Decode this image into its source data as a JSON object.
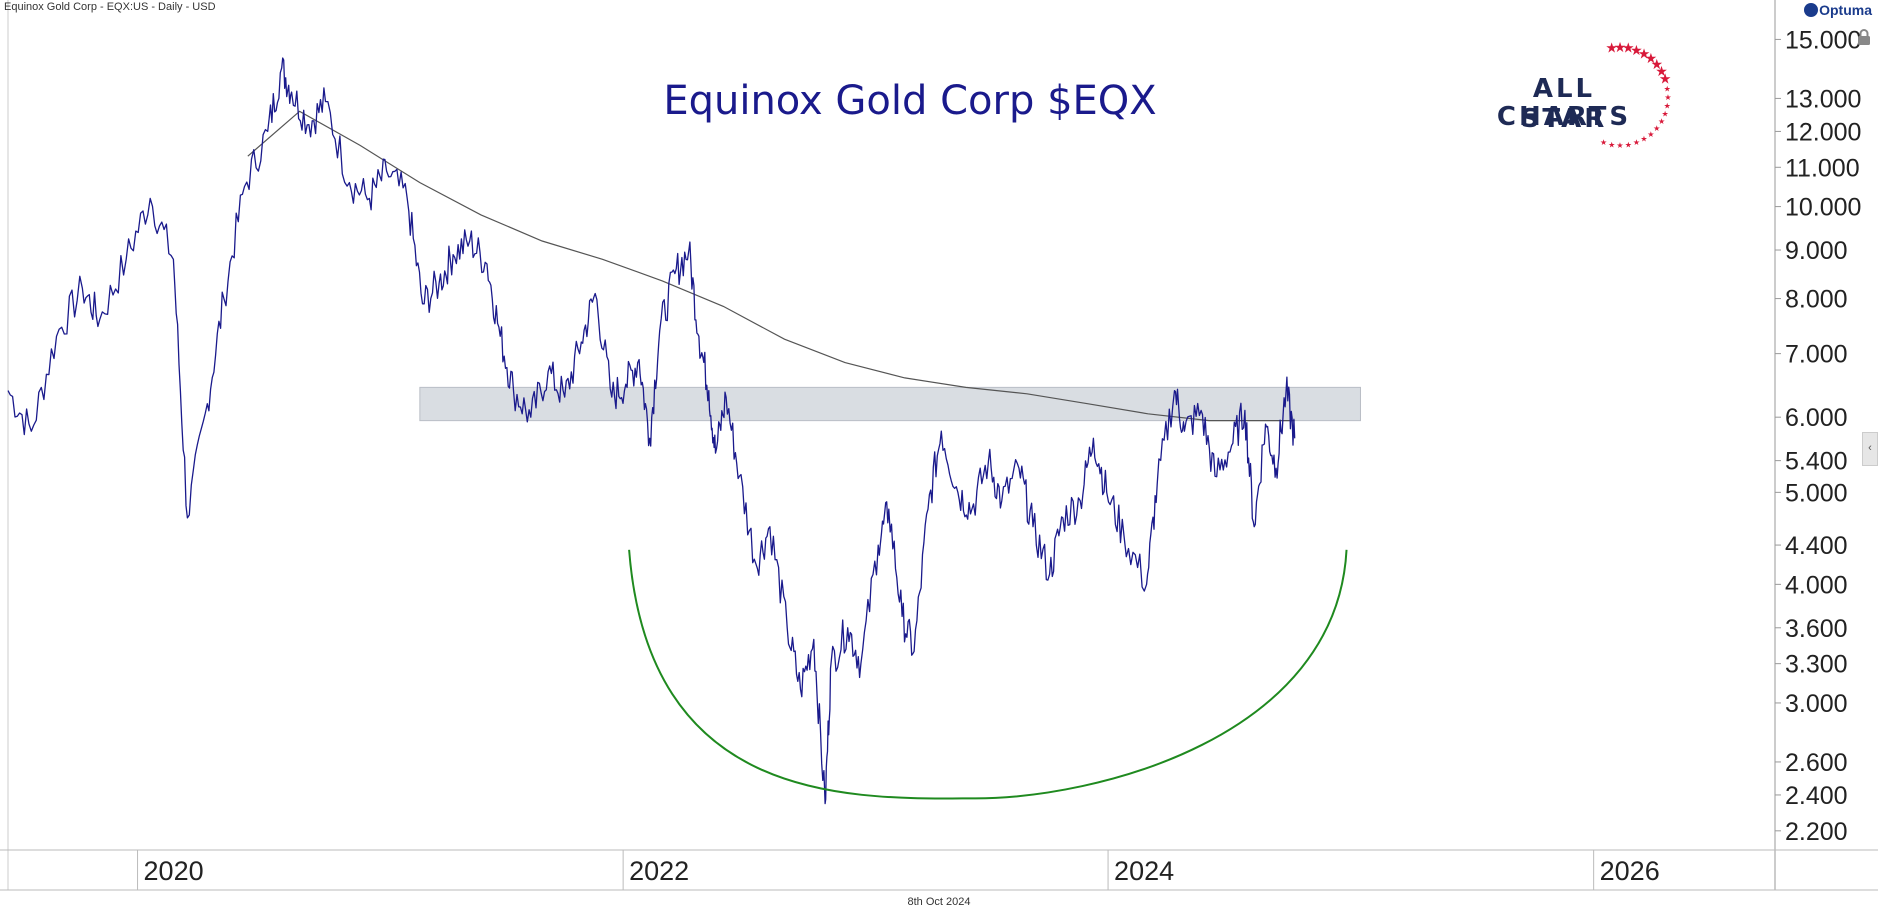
{
  "header": {
    "text": "Equinox Gold Corp - EQX:US - Daily - USD"
  },
  "title": "Equinox Gold Corp $EQX",
  "footer_date": "8th Oct 2024",
  "brand": {
    "name": "Optuma",
    "icon": "optuma-logo-icon"
  },
  "logo": {
    "line1": "ALL STAR",
    "line2": "CHARTS",
    "star_color": "#d8193a",
    "text_color": "#1e2a55"
  },
  "colors": {
    "price": "#1a1a8c",
    "moving_average": "#555555",
    "zone": "#d9dde2",
    "arc": "#1f8a1f",
    "title": "#1a1a8c"
  },
  "chart_data": {
    "type": "line",
    "title": "Equinox Gold Corp $EQX",
    "scale": "log",
    "ylim": [
      2.1,
      15.8
    ],
    "xlim": [
      "2019-06-20",
      "2026-10-01"
    ],
    "x_ticks": [
      {
        "label": "2020",
        "date": "2020-01-01"
      },
      {
        "label": "2022",
        "date": "2022-01-01"
      },
      {
        "label": "2024",
        "date": "2024-01-01"
      },
      {
        "label": "2026",
        "date": "2026-01-01"
      }
    ],
    "y_ticks": [
      {
        "label": "15.000",
        "value": 15.0
      },
      {
        "label": "13.000",
        "value": 13.0
      },
      {
        "label": "12.000",
        "value": 12.0
      },
      {
        "label": "11.000",
        "value": 11.0
      },
      {
        "label": "10.000",
        "value": 10.0
      },
      {
        "label": "9.000",
        "value": 9.0
      },
      {
        "label": "8.000",
        "value": 8.0
      },
      {
        "label": "7.000",
        "value": 7.0
      },
      {
        "label": "6.000",
        "value": 6.0
      },
      {
        "label": "5.400",
        "value": 5.4
      },
      {
        "label": "5.000",
        "value": 5.0
      },
      {
        "label": "4.400",
        "value": 4.4
      },
      {
        "label": "4.000",
        "value": 4.0
      },
      {
        "label": "3.600",
        "value": 3.6
      },
      {
        "label": "3.300",
        "value": 3.3
      },
      {
        "label": "3.000",
        "value": 3.0
      },
      {
        "label": "2.600",
        "value": 2.6
      },
      {
        "label": "2.400",
        "value": 2.4
      },
      {
        "label": "2.200",
        "value": 2.2
      }
    ],
    "price_series": [
      [
        "2019-06-20",
        6.4
      ],
      [
        "2019-07-25",
        5.8
      ],
      [
        "2019-09-01",
        7.3
      ],
      [
        "2019-10-10",
        8.2
      ],
      [
        "2019-11-05",
        7.6
      ],
      [
        "2019-12-15",
        8.8
      ],
      [
        "2020-01-20",
        10.2
      ],
      [
        "2020-02-24",
        8.8
      ],
      [
        "2020-03-16",
        4.7
      ],
      [
        "2020-04-15",
        6.2
      ],
      [
        "2020-05-10",
        8.0
      ],
      [
        "2020-06-10",
        10.5
      ],
      [
        "2020-07-15",
        12.0
      ],
      [
        "2020-08-05",
        14.0
      ],
      [
        "2020-08-20",
        13.2
      ],
      [
        "2020-09-15",
        12.2
      ],
      [
        "2020-10-10",
        12.9
      ],
      [
        "2020-11-15",
        10.6
      ],
      [
        "2020-12-15",
        10.2
      ],
      [
        "2021-01-10",
        10.9
      ],
      [
        "2021-02-10",
        10.2
      ],
      [
        "2021-03-05",
        7.9
      ],
      [
        "2021-03-30",
        8.3
      ],
      [
        "2021-04-20",
        8.9
      ],
      [
        "2021-05-15",
        9.2
      ],
      [
        "2021-06-10",
        8.7
      ],
      [
        "2021-06-30",
        7.3
      ],
      [
        "2021-07-20",
        6.4
      ],
      [
        "2021-08-15",
        6.0
      ],
      [
        "2021-09-10",
        6.7
      ],
      [
        "2021-10-05",
        6.3
      ],
      [
        "2021-10-30",
        7.2
      ],
      [
        "2021-11-20",
        8.1
      ],
      [
        "2021-12-15",
        6.3
      ],
      [
        "2022-01-05",
        6.5
      ],
      [
        "2022-01-25",
        6.9
      ],
      [
        "2022-02-10",
        5.7
      ],
      [
        "2022-02-25",
        7.4
      ],
      [
        "2022-03-20",
        8.5
      ],
      [
        "2022-04-10",
        9.0
      ],
      [
        "2022-04-25",
        7.3
      ],
      [
        "2022-05-10",
        6.4
      ],
      [
        "2022-05-20",
        5.5
      ],
      [
        "2022-06-05",
        6.3
      ],
      [
        "2022-06-25",
        5.2
      ],
      [
        "2022-07-20",
        4.2
      ],
      [
        "2022-08-10",
        4.6
      ],
      [
        "2022-09-05",
        3.6
      ],
      [
        "2022-09-25",
        3.1
      ],
      [
        "2022-10-15",
        3.5
      ],
      [
        "2022-11-01",
        2.35
      ],
      [
        "2022-11-10",
        3.3
      ],
      [
        "2022-12-05",
        3.6
      ],
      [
        "2022-12-25",
        3.3
      ],
      [
        "2023-01-20",
        4.4
      ],
      [
        "2023-02-05",
        4.8
      ],
      [
        "2023-02-25",
        3.7
      ],
      [
        "2023-03-15",
        3.4
      ],
      [
        "2023-04-05",
        4.8
      ],
      [
        "2023-04-25",
        5.8
      ],
      [
        "2023-05-20",
        5.0
      ],
      [
        "2023-06-10",
        4.8
      ],
      [
        "2023-07-05",
        5.4
      ],
      [
        "2023-07-25",
        4.9
      ],
      [
        "2023-08-20",
        5.3
      ],
      [
        "2023-09-10",
        4.6
      ],
      [
        "2023-10-05",
        4.1
      ],
      [
        "2023-10-25",
        4.7
      ],
      [
        "2023-11-20",
        4.9
      ],
      [
        "2023-12-10",
        5.7
      ],
      [
        "2023-12-30",
        5.0
      ],
      [
        "2024-01-25",
        4.5
      ],
      [
        "2024-02-28",
        4.0
      ],
      [
        "2024-03-15",
        5.1
      ],
      [
        "2024-04-10",
        6.4
      ],
      [
        "2024-04-25",
        5.8
      ],
      [
        "2024-05-20",
        6.1
      ],
      [
        "2024-06-10",
        5.2
      ],
      [
        "2024-07-05",
        5.6
      ],
      [
        "2024-07-25",
        6.1
      ],
      [
        "2024-08-08",
        4.6
      ],
      [
        "2024-08-25",
        5.9
      ],
      [
        "2024-09-10",
        5.3
      ],
      [
        "2024-09-25",
        6.4
      ],
      [
        "2024-10-08",
        5.7
      ]
    ],
    "moving_average": [
      [
        "2020-06-15",
        11.3
      ],
      [
        "2020-09-01",
        12.6
      ],
      [
        "2020-12-01",
        11.6
      ],
      [
        "2021-03-01",
        10.6
      ],
      [
        "2021-06-01",
        9.8
      ],
      [
        "2021-09-01",
        9.2
      ],
      [
        "2021-12-01",
        8.8
      ],
      [
        "2022-03-01",
        8.35
      ],
      [
        "2022-06-01",
        7.85
      ],
      [
        "2022-09-01",
        7.25
      ],
      [
        "2022-12-01",
        6.85
      ],
      [
        "2023-03-01",
        6.6
      ],
      [
        "2023-06-01",
        6.45
      ],
      [
        "2023-09-01",
        6.35
      ],
      [
        "2023-12-01",
        6.2
      ],
      [
        "2024-03-01",
        6.05
      ],
      [
        "2024-06-01",
        5.95
      ],
      [
        "2024-10-08",
        5.95
      ]
    ],
    "resistance_zone": {
      "from": "2021-03-01",
      "to": "2025-01-15",
      "low": 5.95,
      "high": 6.45
    },
    "annotations": [
      {
        "type": "arc",
        "color": "#1f8a1f",
        "start": [
          "2022-01-10",
          4.35
        ],
        "bottom": [
          "2023-06-15",
          2.38
        ],
        "end": [
          "2024-12-25",
          4.35
        ]
      }
    ]
  }
}
